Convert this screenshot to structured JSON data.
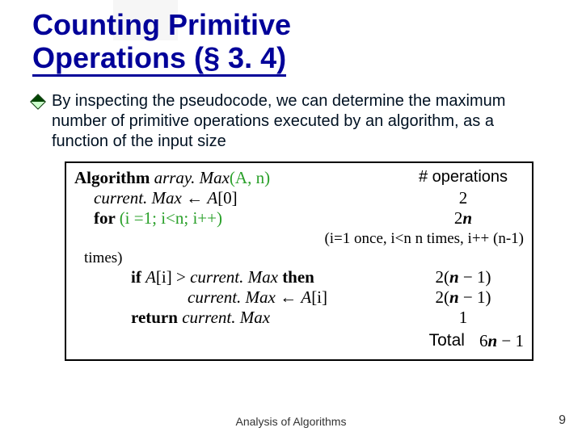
{
  "title_line1": "Counting Primitive",
  "title_line2": "Operations (§ 3. 4)",
  "bullet": "By inspecting the pseudocode, we can determine the maximum number of primitive operations executed by an algorithm, as a function of the input size",
  "algo": {
    "head_kw": "Algorithm",
    "head_name": "array. Max",
    "head_args": "(A, n)",
    "ops_header": "# operations",
    "line1_code": "current. Max",
    "line1_assign": " ← ",
    "line1_rhs_a": "A",
    "line1_rhs_idx": "[0]",
    "line1_ops": "2",
    "line2_kw": "for ",
    "line2_cond": "(i =1; i<n; i++)",
    "line2_ops_pre": "2",
    "line2_ops_n": "n",
    "note1": "(i=1 once, i<n  n times, i++ (n-1)",
    "note2": "times)",
    "line3_kw_if": "if ",
    "line3_arr": "A",
    "line3_idx": "[i]",
    "line3_gt": " > ",
    "line3_cm": "current. Max",
    "line3_then": " then",
    "line3_ops": "2(n − 1)",
    "line4_cm": "current. Max",
    "line4_assign": " ← ",
    "line4_arr": "A",
    "line4_idx": "[i]",
    "line4_ops": "2(n − 1)",
    "line5_kw": "return ",
    "line5_cm": "current. Max",
    "line5_ops": "1",
    "total_label": "Total",
    "total_pre": "6",
    "total_n": "n",
    "total_post": " − 1"
  },
  "footer": "Analysis of Algorithms",
  "pagenum": "9",
  "colors": {
    "title": "#000099",
    "accent_green": "#2aa02a",
    "text": "#001122",
    "border": "#000000"
  }
}
